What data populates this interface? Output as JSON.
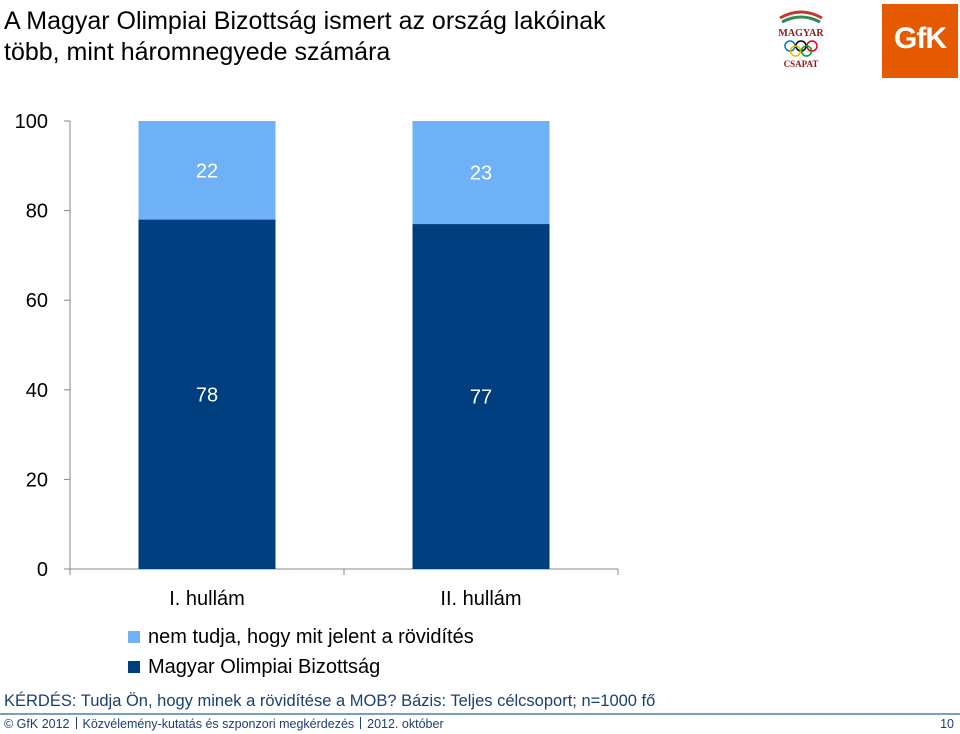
{
  "header": {
    "title_line1": "A Magyar Olimpiai Bizottság ismert az ország lakóinak",
    "title_line2": "több, mint háromnegyede számára",
    "logo_mob_text1": "MAGYAR",
    "logo_mob_text2": "CSAPAT",
    "logo_gfk_text": "GfK"
  },
  "colors": {
    "dark": "#003f7f",
    "light": "#6fb1f7",
    "gfk": "#e55a00"
  },
  "chart_data": {
    "type": "bar",
    "stacked": true,
    "categories": [
      "I. hullám",
      "II. hullám"
    ],
    "series": [
      {
        "name": "Magyar Olimpiai Bizottság",
        "values": [
          78,
          77
        ],
        "color": "#003f7f"
      },
      {
        "name": "nem tudja, hogy mit jelent a rövidítés",
        "values": [
          22,
          23
        ],
        "color": "#6fb1f7"
      }
    ],
    "ylim": [
      0,
      100
    ],
    "yticks": [
      0,
      20,
      40,
      60,
      80,
      100
    ],
    "legend_position": "bottom"
  },
  "legend": {
    "item1": "nem tudja, hogy mit jelent a rövidítés",
    "item2": "Magyar Olimpiai Bizottság"
  },
  "footer": {
    "question": "KÉRDÉS: Tudja Ön, hogy minek a rövidítése a MOB? Bázis: Teljes célcsoport; n=1000 fő",
    "copyright": "© GfK 2012",
    "project": "Közvélemény-kutatás és szponzori megkérdezés",
    "date": "2012. október",
    "page": "10"
  }
}
